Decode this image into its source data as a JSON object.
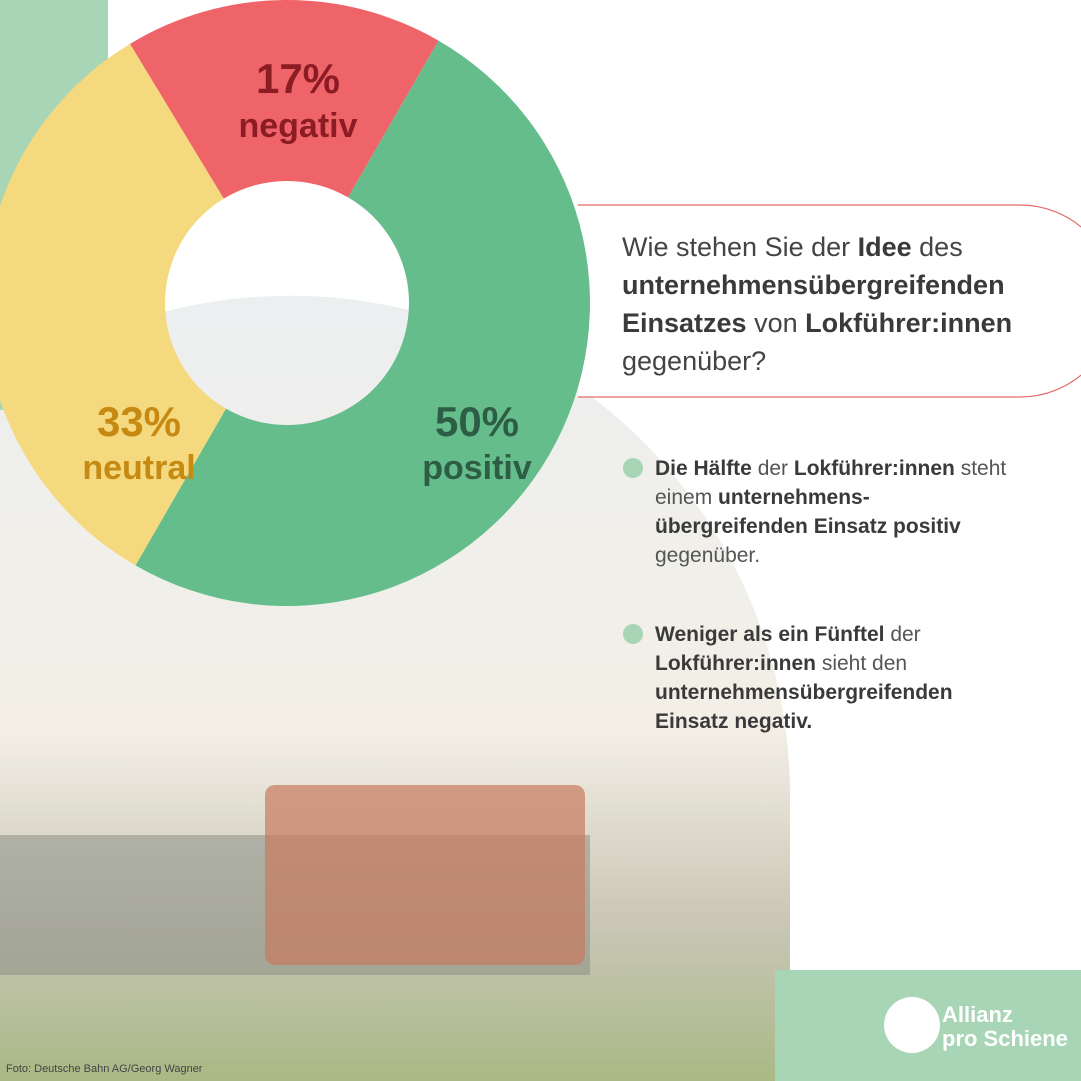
{
  "chart_data": {
    "type": "donut",
    "categories": [
      "positiv",
      "neutral",
      "negativ"
    ],
    "values": [
      50,
      33,
      17
    ],
    "value_labels": [
      "50%",
      "33%",
      "17%"
    ],
    "colors": [
      "#66bd8c",
      "#f5d97e",
      "#ef6469"
    ]
  },
  "question": [
    "Wie stehen Sie der ",
    "Idee",
    " des ",
    "unternehmensübergreifenden Einsatzes",
    " von ",
    "Lokführer:innen",
    " gegenüber?"
  ],
  "bullets": [
    [
      "Die Hälfte",
      " der ",
      "Lokführer:innen",
      " steht einem ",
      "unternehmens-übergreifenden Einsatz positiv",
      " gegenüber."
    ],
    [
      "Weniger als ein Fünftel",
      " der ",
      "Lokführer:innen",
      " sieht den ",
      "unternehmensübergreifenden Einsatz negativ."
    ]
  ],
  "logo": [
    "Allianz",
    "pro Schiene"
  ],
  "credit": "Foto: Deutsche Bahn AG/Georg Wagner"
}
